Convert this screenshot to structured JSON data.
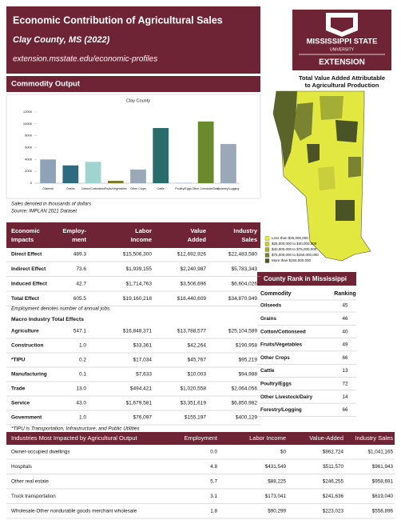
{
  "header": {
    "title": "Economic Contribution of Agricultural Sales",
    "subtitle": "Clay County, MS (2022)",
    "url": "extension.msstate.edu/economic-profiles"
  },
  "logo": {
    "line1": "MISSISSIPPI STATE",
    "line2": "UNIVERSITY",
    "line3": "EXTENSION"
  },
  "map": {
    "title": [
      "Total Value Added Attributable",
      "to Agricultural Production"
    ],
    "legend": [
      {
        "label": "Less than $25,000,000",
        "color": "#e8ec3c"
      },
      {
        "label": "$25,000,000 to $40,000,000",
        "color": "#c8cf3a"
      },
      {
        "label": "$40,000,000 to $75,000,000",
        "color": "#a4ad34"
      },
      {
        "label": "$75,000,000 to $150,000,000",
        "color": "#7a8430"
      },
      {
        "label": "More than $150,000,000",
        "color": "#4a5326"
      }
    ]
  },
  "commodity_heading": "Commodity Output",
  "chart_data": {
    "type": "bar",
    "title": "Clay County",
    "categories": [
      "Oilseeds",
      "Grains",
      "Cotton/Cottonseed",
      "Fruits/Vegetables",
      "Other Crops",
      "Cattle",
      "Poultry/Eggs",
      "Other Livestock/Dairy",
      "Forestry/Logging"
    ],
    "values": [
      4000,
      3000,
      3600,
      400,
      2300,
      9300,
      50,
      10400,
      6600
    ],
    "colors": [
      "#8fa3b8",
      "#2e6b80",
      "#9fd4d0",
      "#7a7a2a",
      "#9aa8b8",
      "#2a6b6b",
      "#8fa3b8",
      "#6b8a2e",
      "#9aa8b8"
    ],
    "ylim": [
      0,
      12000
    ],
    "yticks": [
      0,
      2000,
      4000,
      6000,
      8000,
      10000,
      12000
    ],
    "grid": false
  },
  "chart_notes": [
    "Sales denoted in thousands of dollars",
    "Source: IMPLAN 2021 Dataset"
  ],
  "impacts_table": {
    "columns": [
      [
        "Economic",
        "Impacts"
      ],
      [
        "Employ-",
        "ment"
      ],
      [
        "Labor",
        "Income"
      ],
      [
        "Value",
        "Added"
      ],
      [
        "Industry",
        "Sales"
      ]
    ],
    "rows": [
      [
        "Direct Effect",
        "489.3",
        "$15,506,300",
        "$12,692,926",
        "$22,483,580"
      ],
      [
        "Indirect Effect",
        "73.6",
        "$1,939,155",
        "$2,240,987",
        "$5,783,343"
      ],
      [
        "Induced Effect",
        "42.7",
        "$1,714,763",
        "$3,506,696",
        "$6,604,026"
      ],
      [
        "Total Effect",
        "605.5",
        "$19,160,218",
        "$18,440,609",
        "$34,870,949"
      ]
    ],
    "note": "Employment denotes number of annual jobs."
  },
  "macro_table": {
    "title": "Macro Industry Total Effects",
    "rows": [
      [
        "Agriculture",
        "547.1",
        "$16,848,371",
        "$13,788,577",
        "$25,104,589"
      ],
      [
        "Construction",
        "1.0",
        "$33,361",
        "$42,264",
        "$190,958"
      ],
      [
        "*TIPU",
        "0.2",
        "$17,034",
        "$45,767",
        "$95,219"
      ],
      [
        "Manufacturing",
        "0.1",
        "$7,633",
        "$10,003",
        "$94,988"
      ],
      [
        "Trade",
        "13.0",
        "$494,421",
        "$1,020,558",
        "$2,064,056"
      ],
      [
        "Service",
        "43.0",
        "$1,679,581",
        "$3,351,619",
        "$6,850,982"
      ],
      [
        "Government",
        "1.0",
        "$76,097",
        "$155,197",
        "$400,129"
      ]
    ],
    "note": "*TIPU is Transportation, Infrastructure, and Public Utilities"
  },
  "rank_table": {
    "title": "County Rank in Mississippi",
    "columns": [
      "Commodity",
      "Ranking"
    ],
    "rows": [
      [
        "Oilseeds",
        "45"
      ],
      [
        "Grains",
        "46"
      ],
      [
        "Cotton/Cottonseed",
        "40"
      ],
      [
        "Fruits/Vegetables",
        "49"
      ],
      [
        "Other Crops",
        "66"
      ],
      [
        "Cattle",
        "13"
      ],
      [
        "Poultry/Eggs",
        "72"
      ],
      [
        "Other Livestock/Dairy",
        "14"
      ],
      [
        "Forestry/Logging",
        "66"
      ]
    ]
  },
  "industries_table": {
    "columns": [
      "Industries Most Impacted by Agricultural Output",
      "Employment",
      "Labor Income",
      "Value-Added",
      "Industry Sales"
    ],
    "rows": [
      [
        "Owner-occupied dwellings",
        "0.0",
        "$0",
        "$862,724",
        "$1,041,165"
      ],
      [
        "Hospitals",
        "4.8",
        "$431,549",
        "$511,570",
        "$961,943"
      ],
      [
        "Other real estate",
        "5.7",
        "$88,225",
        "$246,255",
        "$958,691"
      ],
      [
        "Truck transportation",
        "3.1",
        "$173,041",
        "$241,636",
        "$619,040"
      ],
      [
        "Wholesale-Other nondurable goods merchant wholesale",
        "1.8",
        "$90,299",
        "$223,023",
        "$558,896"
      ]
    ]
  }
}
